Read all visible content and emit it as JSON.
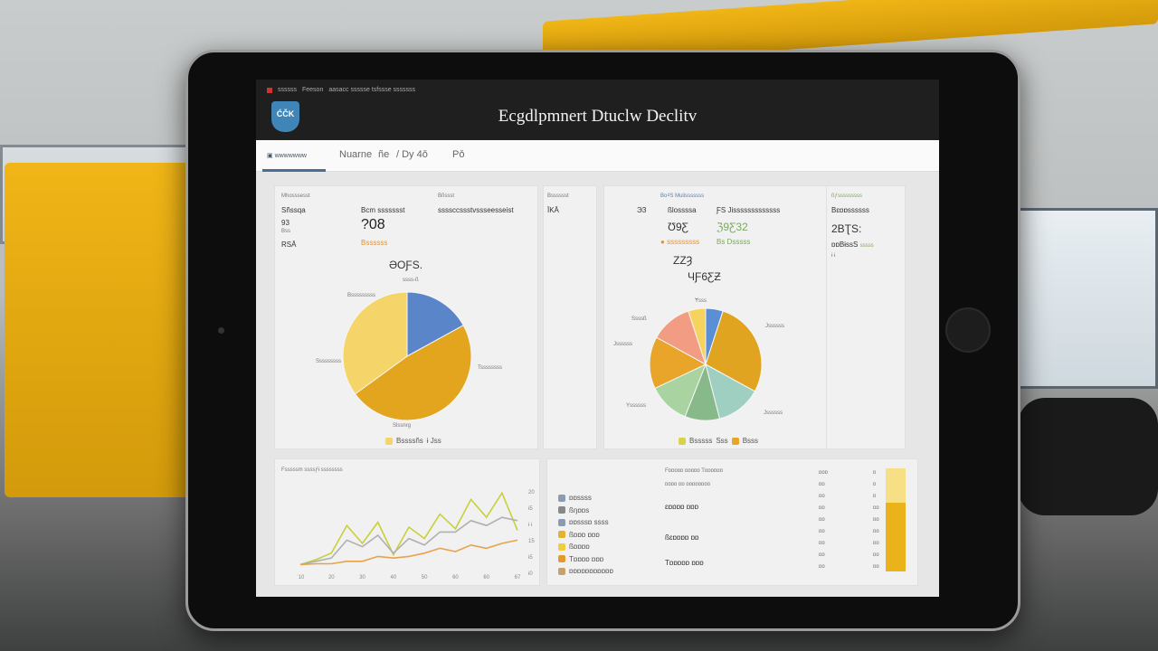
{
  "app": {
    "title": "Ecgdlpmnert Dtuclw Declitv",
    "logo": "ĆČK",
    "topbar": [
      "ssssss",
      "Feeson",
      "aasacc ssssse tsfssse sssssss"
    ]
  },
  "tabs": [
    {
      "label": "wwwwwww",
      "active": true
    },
    {
      "label": "Nuarne"
    },
    {
      "label": "ñe"
    },
    {
      "label": "/ Dy 4ǒ"
    },
    {
      "label": "Pǒ"
    }
  ],
  "card1": {
    "label": "Mhosssesst",
    "row1": "Sñssqa",
    "v1": "93",
    "v1b": "Bss",
    "v2": "RSĀ",
    "metric_label": "Bcm ssssssst",
    "metric": "?08",
    "metric_sub": "Bssssss",
    "col3_label": "Bñssst",
    "col3_value": "ssssccssstvssseesseist",
    "pie_title": "ƏOƑS.",
    "pie_top": "ssss-ß",
    "pie_left_top": "Bsssssssss",
    "pie_left": "Sssssssss",
    "pie_right": "Tssssssss",
    "pie_bottom": "Slssnrg",
    "slice_labels": [
      "Bss",
      "Bss",
      "Bss"
    ],
    "legend": [
      "Bssssñs",
      "ɨ Jss"
    ],
    "pie": {
      "values": [
        17,
        48,
        35
      ],
      "colors": [
        "#5a86c9",
        "#e2a51d",
        "#f5d469"
      ]
    }
  },
  "card2": {
    "label": "Bsssssst",
    "value": "ÏKĀ"
  },
  "card3": {
    "label": "Bo₫S Mulisssssss",
    "side": "ЭЗ",
    "c1_label": "ßlossssa",
    "c1_value": "Ʊ9Ƹ",
    "c1_sub": "sssssssss",
    "c2_label": "ƑS Jisssssssssssss",
    "c2_value": "ℨ9Ƹ32",
    "c2_sub": "Bs Dsssss",
    "mid1": "ZZȜ",
    "mid2": "ЧƑ6ƸƵ",
    "pie_labels": [
      "Ɏsss",
      "Ssssß",
      "Jssssss",
      "Jssssss",
      "Yssssss",
      "Jssssss"
    ],
    "legend": [
      "Bsssss",
      "Sss",
      "Bsss"
    ],
    "pie": {
      "values": [
        5,
        28,
        13,
        10,
        12,
        15,
        12,
        5
      ],
      "colors": [
        "#5a8fd6",
        "#e0a421",
        "#9fcfc0",
        "#88b98b",
        "#a9d4a2",
        "#e8a529",
        "#f29d83",
        "#f6d35e"
      ]
    }
  },
  "card4": {
    "label": "ßƒsssssssss",
    "value_label": "Bɛɒɒssssss",
    "value": "2BƮS:",
    "sub": "ɒɒBɨssS",
    "sub2": "sssss",
    "sub3": "ɨ ɨ"
  },
  "line_chart": {
    "title": "Fsssssm ssssƒɨ ssssssss",
    "x_ticks": [
      "ˈ10",
      "20",
      "30",
      "40",
      "50",
      "60",
      "60",
      "67"
    ],
    "y_ticks": [
      "20",
      "ɨ5",
      "ɨ ɨ",
      "15",
      "ɨ5",
      "ɨ0"
    ],
    "series": [
      {
        "color": "#c9cf3a",
        "values": [
          4,
          10,
          18,
          52,
          30,
          56,
          16,
          50,
          36,
          66,
          48,
          84,
          62,
          92,
          46
        ]
      },
      {
        "color": "#b0b0b0",
        "values": [
          4,
          8,
          12,
          34,
          26,
          40,
          18,
          36,
          28,
          44,
          44,
          58,
          52,
          62,
          58
        ]
      },
      {
        "color": "#e7a34c",
        "values": [
          4,
          5,
          5,
          8,
          8,
          14,
          12,
          14,
          18,
          24,
          20,
          28,
          24,
          30,
          34
        ]
      }
    ]
  },
  "table": {
    "legend": [
      {
        "label": "ɒɒssss",
        "color": "#8a9cb0"
      },
      {
        "label": "ßŋɒɒs",
        "color": "#888"
      },
      {
        "label": "ɒɒsssɒ ssss",
        "color": "#8a9cb0"
      },
      {
        "label": "ßɒɒɒ ɒɒɒ",
        "color": "#e2b42a"
      },
      {
        "label": "ßɒɒɒɒ",
        "color": "#f0cd3c"
      },
      {
        "label": "Tɒɒɒɒ ɒɒɒ",
        "color": "#e39a2a"
      },
      {
        "label": "ɒɒɒɒɒɒɒɒɒɒɒ",
        "color": "#c7a36b"
      }
    ],
    "header": [
      "Fɒɒɒɒɒ ɒɒɒɒɒ Tɒɒɒɒɒɒ",
      "ɒɒɒɒ ɒɒ ɒɒɒɒɒɒɒɒ"
    ],
    "rows": [
      "ɛɒɒɒɒ ɒɒɒ",
      "ßɛɒɒɒɒ ɒɒ",
      "Tɒɒɒɒɒ ɒɒɒ"
    ],
    "col_a": [
      "ɒɒɒ",
      "ɒɒ",
      "ɒɒ",
      "ɒɒ",
      "ɒɒ",
      "ɒɒ",
      "ɒɒ",
      "ɒɒ",
      "ɒɒ"
    ],
    "col_b": [
      "ɒ",
      "ɒ",
      "ɒ",
      "ɒɒ",
      "ɒɒ",
      "ɒɒ",
      "ɒɒ",
      "ɒɒ",
      "ɒɒ"
    ],
    "progress_percent": 67
  }
}
